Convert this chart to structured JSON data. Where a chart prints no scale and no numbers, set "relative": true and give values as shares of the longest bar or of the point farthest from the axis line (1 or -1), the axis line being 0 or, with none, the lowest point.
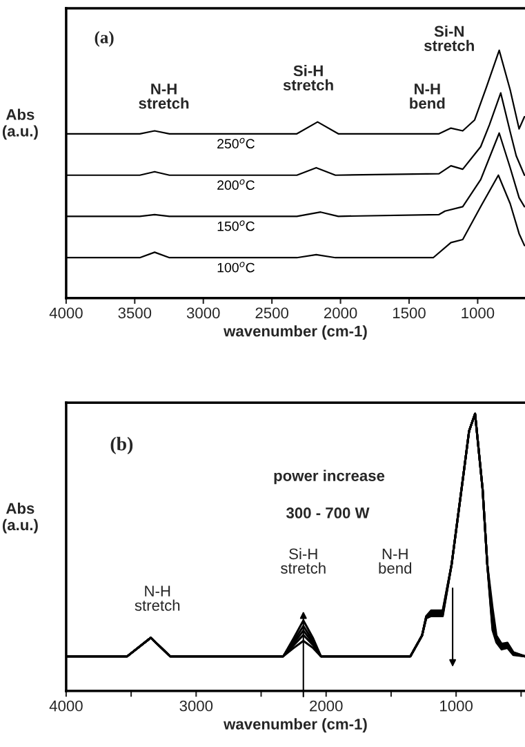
{
  "chart_data": [
    {
      "type": "line",
      "relative": true,
      "xlabel": "wavenumber (cm-1)",
      "ylabel": "Abs\n(a.u.)",
      "xlim": [
        4000,
        655
      ],
      "xticks": [
        4000,
        3500,
        3000,
        2500,
        2000,
        1500,
        1000
      ],
      "grid": false,
      "legend": false,
      "marker": "none",
      "line_style": "solid",
      "annotations": [
        "(a)",
        "N-H\nstretch",
        "Si-H\nstretch",
        "N-H\nbend",
        "Si-N\nstretch"
      ],
      "series": [
        {
          "name": "250$^{o}$C",
          "color": "#000000",
          "x": [
            4000,
            3463,
            3355,
            3247,
            2318,
            2167,
            2016,
            1282,
            1195,
            1109,
            1022,
            936,
            843,
            763,
            698,
            659
          ],
          "values": [
            0.663,
            0.663,
            0.675,
            0.663,
            0.663,
            0.711,
            0.663,
            0.663,
            0.686,
            0.675,
            0.719,
            0.852,
            1.0,
            0.84,
            0.683,
            0.732
          ]
        },
        {
          "name": "200$^{o}$C",
          "color": "#000000",
          "x": [
            4000,
            3463,
            3355,
            3247,
            2318,
            2177,
            2037,
            1282,
            1195,
            1109,
            978,
            914,
            832,
            763,
            719,
            659
          ],
          "values": [
            0.496,
            0.496,
            0.51,
            0.496,
            0.496,
            0.526,
            0.496,
            0.502,
            0.534,
            0.52,
            0.611,
            0.7,
            0.828,
            0.671,
            0.574,
            0.496
          ]
        },
        {
          "name": "150$^{o}$C",
          "color": "#000000",
          "x": [
            4000,
            3463,
            3355,
            3247,
            2318,
            2145,
            2016,
            1282,
            1238,
            1109,
            978,
            843,
            763,
            698,
            659
          ],
          "values": [
            0.33,
            0.33,
            0.337,
            0.33,
            0.33,
            0.347,
            0.33,
            0.337,
            0.351,
            0.369,
            0.478,
            0.666,
            0.526,
            0.405,
            0.369
          ]
        },
        {
          "name": "100$^{o}$C",
          "color": "#000000",
          "x": [
            4000,
            3463,
            3355,
            3247,
            2318,
            2177,
            2037,
            1324,
            1195,
            1109,
            978,
            849,
            763,
            698,
            659
          ],
          "values": [
            0.163,
            0.163,
            0.185,
            0.163,
            0.163,
            0.175,
            0.163,
            0.163,
            0.224,
            0.236,
            0.369,
            0.496,
            0.381,
            0.26,
            0.212
          ]
        }
      ]
    },
    {
      "type": "line",
      "relative": true,
      "xlabel": "wavenumber (cm-1)",
      "ylabel": "Abs\n(a.u.)",
      "xlim": [
        4000,
        470
      ],
      "xticks": [
        4000,
        {
          "value": 3500,
          "label": null
        },
        3000,
        {
          "value": 2500,
          "label": null
        },
        2000,
        {
          "value": 1500,
          "label": null
        },
        1000,
        {
          "value": 500,
          "label": null
        }
      ],
      "grid": false,
      "legend": false,
      "marker": "none",
      "line_style": "solid",
      "annotations": [
        "(b)",
        "power increase",
        "300 - 700 W",
        "N-H\nstretch",
        "Si-H\nstretch",
        "N-H\nbend"
      ],
      "series": [
        {
          "color": "#000000",
          "x": [
            4000,
            3530,
            3349,
            3200,
            2330,
            2250,
            2175,
            2100,
            2040,
            1352,
            1262,
            1230,
            1193,
            1103,
            1034,
            944,
            900,
            854,
            796,
            760,
            720,
            690,
            650,
            605,
            560,
            470
          ],
          "values": [
            0.125,
            0.125,
            0.192,
            0.125,
            0.125,
            0.19,
            0.254,
            0.19,
            0.125,
            0.125,
            0.2,
            0.27,
            0.29,
            0.29,
            0.458,
            0.779,
            0.938,
            1.0,
            0.727,
            0.457,
            0.3,
            0.2,
            0.17,
            0.174,
            0.14,
            0.125
          ]
        },
        {
          "color": "#000000",
          "x": [
            4000,
            3530,
            3349,
            3200,
            2330,
            2250,
            2175,
            2100,
            2040,
            1352,
            1262,
            1230,
            1193,
            1103,
            1034,
            944,
            900,
            854,
            796,
            760,
            720,
            690,
            650,
            605,
            560,
            470
          ],
          "values": [
            0.125,
            0.125,
            0.192,
            0.125,
            0.125,
            0.18,
            0.234,
            0.18,
            0.125,
            0.125,
            0.2,
            0.268,
            0.285,
            0.285,
            0.458,
            0.779,
            0.938,
            1.0,
            0.727,
            0.457,
            0.26,
            0.19,
            0.165,
            0.17,
            0.138,
            0.125
          ]
        },
        {
          "color": "#000000",
          "x": [
            4000,
            3530,
            3349,
            3200,
            2330,
            2250,
            2175,
            2100,
            2040,
            1352,
            1262,
            1230,
            1193,
            1103,
            1034,
            944,
            900,
            854,
            796,
            760,
            720,
            690,
            650,
            605,
            560,
            470
          ],
          "values": [
            0.125,
            0.125,
            0.192,
            0.125,
            0.125,
            0.172,
            0.218,
            0.172,
            0.125,
            0.125,
            0.2,
            0.266,
            0.28,
            0.28,
            0.458,
            0.779,
            0.938,
            1.0,
            0.727,
            0.457,
            0.246,
            0.185,
            0.16,
            0.165,
            0.135,
            0.125
          ]
        },
        {
          "color": "#000000",
          "x": [
            4000,
            3530,
            3349,
            3200,
            2330,
            2250,
            2175,
            2100,
            2040,
            1352,
            1262,
            1230,
            1193,
            1103,
            1034,
            944,
            900,
            854,
            796,
            760,
            720,
            690,
            650,
            605,
            560,
            470
          ],
          "values": [
            0.125,
            0.125,
            0.192,
            0.125,
            0.125,
            0.165,
            0.202,
            0.165,
            0.125,
            0.125,
            0.2,
            0.264,
            0.275,
            0.275,
            0.458,
            0.779,
            0.938,
            1.0,
            0.727,
            0.457,
            0.23,
            0.18,
            0.155,
            0.16,
            0.132,
            0.125
          ]
        },
        {
          "color": "#000000",
          "x": [
            4000,
            3530,
            3349,
            3200,
            2330,
            2250,
            2175,
            2100,
            2040,
            1352,
            1262,
            1230,
            1193,
            1103,
            1034,
            944,
            900,
            854,
            796,
            760,
            720,
            690,
            650,
            605,
            560,
            470
          ],
          "values": [
            0.125,
            0.125,
            0.192,
            0.125,
            0.125,
            0.155,
            0.181,
            0.155,
            0.125,
            0.125,
            0.2,
            0.262,
            0.27,
            0.27,
            0.458,
            0.779,
            0.938,
            1.0,
            0.727,
            0.457,
            0.22,
            0.175,
            0.15,
            0.155,
            0.13,
            0.125
          ]
        }
      ]
    }
  ]
}
